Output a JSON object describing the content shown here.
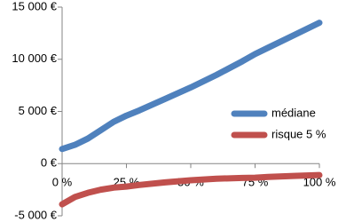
{
  "chart_data": {
    "type": "line",
    "x": [
      0,
      5,
      10,
      15,
      20,
      25,
      30,
      40,
      50,
      60,
      70,
      75,
      80,
      90,
      100
    ],
    "series": [
      {
        "name": "médiane",
        "color": "#4f81bd",
        "values": [
          1400,
          1800,
          2400,
          3200,
          4000,
          4600,
          5100,
          6200,
          7300,
          8500,
          9800,
          10500,
          11100,
          12300,
          13500
        ]
      },
      {
        "name": "risque 5 %",
        "color": "#c0504d",
        "values": [
          -3900,
          -3200,
          -2800,
          -2500,
          -2300,
          -2200,
          -2050,
          -1800,
          -1600,
          -1450,
          -1370,
          -1350,
          -1280,
          -1180,
          -1100
        ]
      }
    ],
    "xlim": [
      0,
      100
    ],
    "xticks": [
      {
        "value": 0,
        "label": "0 %"
      },
      {
        "value": 25,
        "label": "25 %"
      },
      {
        "value": 50,
        "label": "50 %"
      },
      {
        "value": 75,
        "label": "75 %"
      },
      {
        "value": 100,
        "label": "100 %"
      }
    ],
    "ylim": [
      -5000,
      15000
    ],
    "yticks": [
      {
        "value": -5000,
        "label": "-5 000 €"
      },
      {
        "value": 0,
        "label": "0 €"
      },
      {
        "value": 5000,
        "label": "5 000 €"
      },
      {
        "value": 10000,
        "label": "10 000 €"
      },
      {
        "value": 15000,
        "label": "15 000 €"
      }
    ],
    "grid": false,
    "legend": "right"
  }
}
